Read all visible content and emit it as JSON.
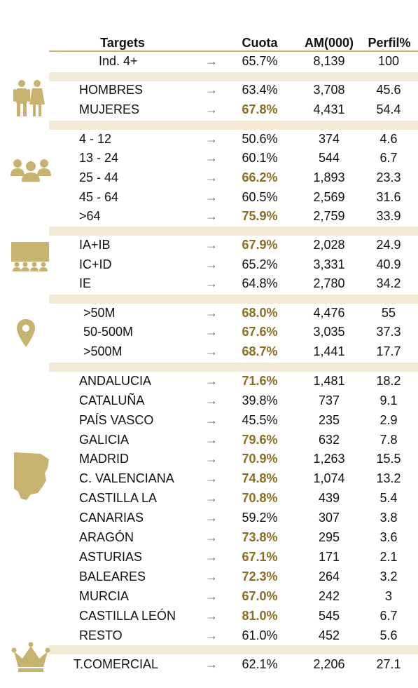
{
  "header": {
    "targets": "Targets",
    "cuota": "Cuota",
    "am": "AM(000)",
    "perfil": "Perfil%"
  },
  "arrow": "→",
  "rows": [
    {
      "label": "Ind. 4+",
      "cuota": "65.7%",
      "am": "8,139",
      "perfil": "100",
      "hi": false
    },
    {
      "label": "HOMBRES",
      "cuota": "63.4%",
      "am": "3,708",
      "perfil": "45.6",
      "hi": false
    },
    {
      "label": "MUJERES",
      "cuota": "67.8%",
      "am": "4,431",
      "perfil": "54.4",
      "hi": true
    },
    {
      "label": "4 - 12",
      "cuota": "50.6%",
      "am": "374",
      "perfil": "4.6",
      "hi": false
    },
    {
      "label": "13 - 24",
      "cuota": "60.1%",
      "am": "544",
      "perfil": "6.7",
      "hi": false
    },
    {
      "label": "25 - 44",
      "cuota": "66.2%",
      "am": "1,893",
      "perfil": "23.3",
      "hi": true
    },
    {
      "label": "45 - 64",
      "cuota": "60.5%",
      "am": "2,569",
      "perfil": "31.6",
      "hi": false
    },
    {
      "label": ">64",
      "cuota": "75.9%",
      "am": "2,759",
      "perfil": "33.9",
      "hi": true
    },
    {
      "label": "IA+IB",
      "cuota": "67.9%",
      "am": "2,028",
      "perfil": "24.9",
      "hi": true
    },
    {
      "label": "IC+ID",
      "cuota": "65.2%",
      "am": "3,331",
      "perfil": "40.9",
      "hi": false
    },
    {
      "label": "IE",
      "cuota": "64.8%",
      "am": "2,780",
      "perfil": "34.2",
      "hi": false
    },
    {
      "label": ">50M",
      "cuota": "68.0%",
      "am": "4,476",
      "perfil": "55",
      "hi": true
    },
    {
      "label": "50-500M",
      "cuota": "67.6%",
      "am": "3,035",
      "perfil": "37.3",
      "hi": true
    },
    {
      "label": ">500M",
      "cuota": "68.7%",
      "am": "1,441",
      "perfil": "17.7",
      "hi": true
    },
    {
      "label": "ANDALUCIA",
      "cuota": "71.6%",
      "am": "1,481",
      "perfil": "18.2",
      "hi": true
    },
    {
      "label": "CATALUÑA",
      "cuota": "39.8%",
      "am": "737",
      "perfil": "9.1",
      "hi": false
    },
    {
      "label": "PAÍS VASCO",
      "cuota": "45.5%",
      "am": "235",
      "perfil": "2.9",
      "hi": false
    },
    {
      "label": "GALICIA",
      "cuota": "79.6%",
      "am": "632",
      "perfil": "7.8",
      "hi": true
    },
    {
      "label": "MADRID",
      "cuota": "70.9%",
      "am": "1,263",
      "perfil": "15.5",
      "hi": true
    },
    {
      "label": "C. VALENCIANA",
      "cuota": "74.8%",
      "am": "1,074",
      "perfil": "13.2",
      "hi": true
    },
    {
      "label": "CASTILLA LA",
      "cuota": "70.8%",
      "am": "439",
      "perfil": "5.4",
      "hi": true
    },
    {
      "label": "CANARIAS",
      "cuota": "59.2%",
      "am": "307",
      "perfil": "3.8",
      "hi": false
    },
    {
      "label": "ARAGÓN",
      "cuota": "73.8%",
      "am": "295",
      "perfil": "3.6",
      "hi": true
    },
    {
      "label": "ASTURIAS",
      "cuota": "67.1%",
      "am": "171",
      "perfil": "2.1",
      "hi": true
    },
    {
      "label": "BALEARES",
      "cuota": "72.3%",
      "am": "264",
      "perfil": "3.2",
      "hi": true
    },
    {
      "label": "MURCIA",
      "cuota": "67.0%",
      "am": "242",
      "perfil": "3",
      "hi": true
    },
    {
      "label": "CASTILLA LEÓN",
      "cuota": "81.0%",
      "am": "545",
      "perfil": "6.7",
      "hi": true
    },
    {
      "label": "RESTO",
      "cuota": "61.0%",
      "am": "452",
      "perfil": "5.6",
      "hi": false
    },
    {
      "label": "T.COMERCIAL",
      "cuota": "62.1%",
      "am": "2,206",
      "perfil": "27.1",
      "hi": false
    }
  ],
  "icons": [
    "people-couple-icon",
    "group-icon",
    "audience-icon",
    "location-pin-icon",
    "spain-map-icon",
    "crown-icon"
  ],
  "colors": {
    "accent": "#c8b270",
    "band": "#f3ebd6",
    "highlight": "#8a6d22"
  }
}
